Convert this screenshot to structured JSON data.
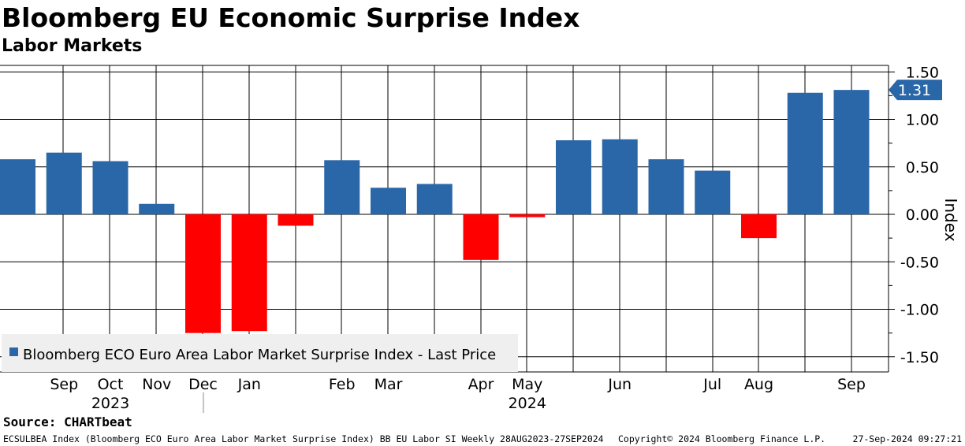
{
  "header": {
    "title": "Bloomberg EU Economic Surprise Index",
    "subtitle": "Labor Markets"
  },
  "chart_data": {
    "type": "bar",
    "title": "Bloomberg EU Economic Surprise Index",
    "subtitle": "Labor Markets",
    "ylabel": "Index",
    "ylim": [
      -1.5,
      1.5
    ],
    "yticks": [
      "1.50",
      "1.00",
      "0.50",
      "0.00",
      "-0.50",
      "-1.00",
      "-1.50"
    ],
    "ytick_values": [
      1.5,
      1.0,
      0.5,
      0.0,
      -0.5,
      -1.0,
      -1.5
    ],
    "grid": true,
    "legend_position": "bottom-left",
    "series": [
      {
        "name": "Bloomberg ECO Euro Area Labor Market Surprise Index - Last Price",
        "color": "#2a67a8",
        "negative_color": "#ff0000",
        "values": [
          0.58,
          0.65,
          0.56,
          0.11,
          -1.25,
          -1.23,
          -0.12,
          0.57,
          0.28,
          0.32,
          -0.48,
          -0.03,
          0.78,
          0.79,
          0.58,
          0.46,
          -0.25,
          1.28,
          1.31
        ]
      }
    ],
    "x_month_labels": [
      "Sep",
      "Oct",
      "Nov",
      "Dec",
      "Jan",
      "Feb",
      "Mar",
      "Apr",
      "May",
      "Jun",
      "Jul",
      "Aug",
      "Sep"
    ],
    "x_month_label_bar_index": [
      1,
      2,
      3,
      4,
      5,
      7,
      8,
      10,
      11,
      13,
      15,
      16,
      18
    ],
    "x_year_labels": [
      {
        "label": "2023",
        "under": "Oct"
      },
      {
        "label": "2024",
        "under": "May"
      }
    ],
    "last_value_label": "1.31",
    "axis_color": "#000000",
    "background": "#ffffff"
  },
  "footer": {
    "source": "Source: CHARTbeat",
    "ticker": "ECSULBEA Index (Bloomberg ECO Euro Area Labor Market Surprise Index) BB EU Labor SI  Weekly 28AUG2023-27SEP2024",
    "copyright": "Copyright© 2024 Bloomberg Finance L.P.",
    "timestamp": "27-Sep-2024 09:27:21"
  }
}
